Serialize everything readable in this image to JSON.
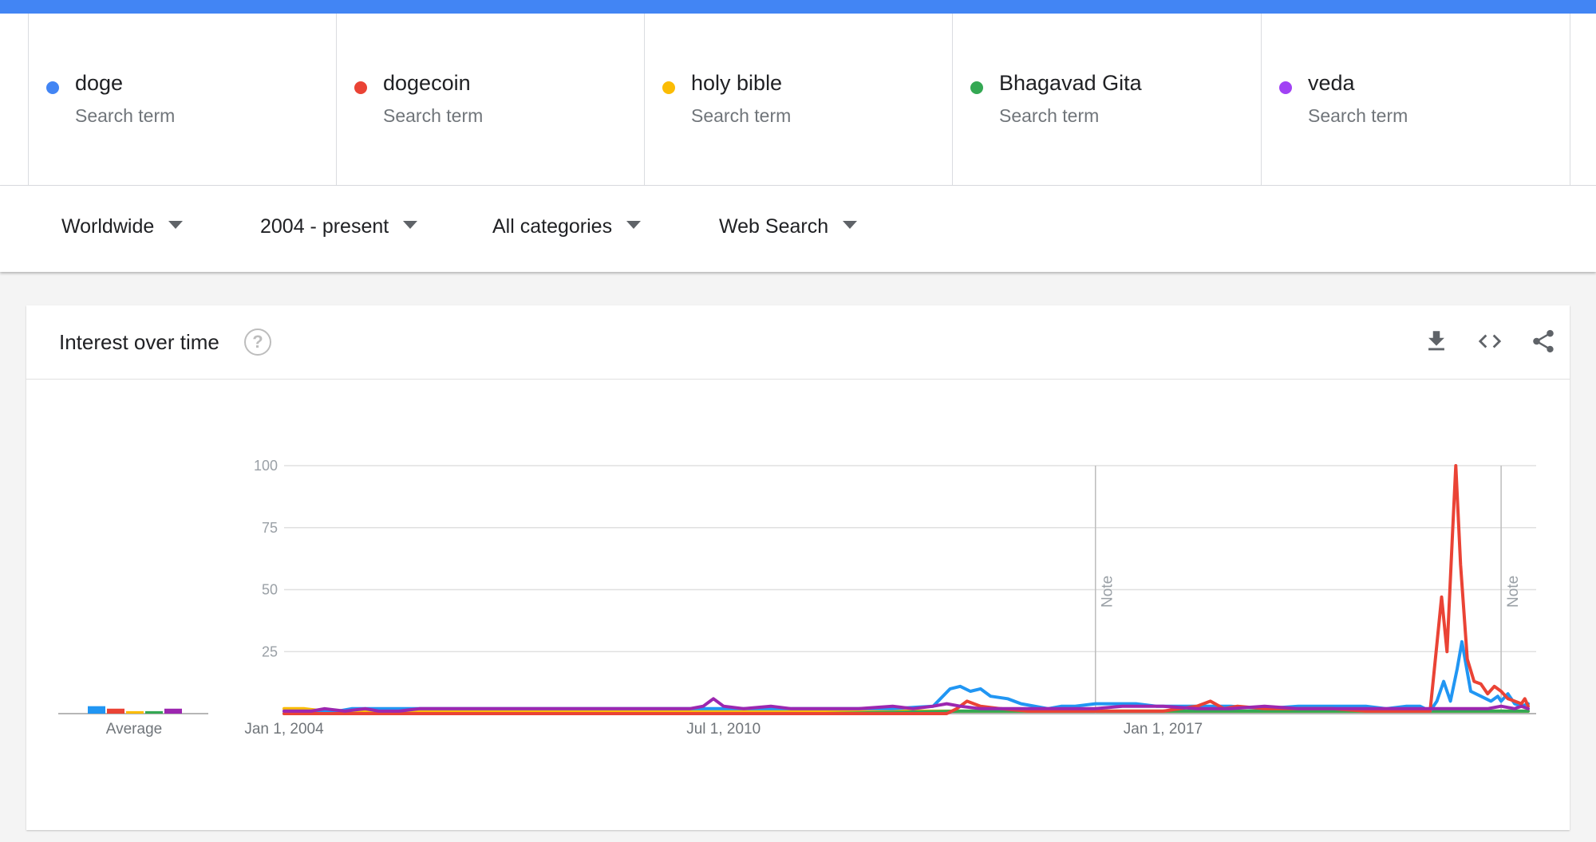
{
  "terms": [
    {
      "name": "doge",
      "sub": "Search term",
      "color": "#4285f4"
    },
    {
      "name": "dogecoin",
      "sub": "Search term",
      "color": "#ea4335"
    },
    {
      "name": "holy bible",
      "sub": "Search term",
      "color": "#fbbc04"
    },
    {
      "name": "Bhagavad Gita",
      "sub": "Search term",
      "color": "#34a853"
    },
    {
      "name": "veda",
      "sub": "Search term",
      "color": "#a142f4"
    }
  ],
  "filters": {
    "region": "Worldwide",
    "time": "2004 - present",
    "category": "All categories",
    "search_type": "Web Search"
  },
  "card": {
    "title": "Interest over time",
    "help_icon": "help-icon",
    "tools": [
      "download-icon",
      "embed-code-icon",
      "share-icon"
    ]
  },
  "chart_data": {
    "type": "line",
    "y_ticks": [
      "100",
      "75",
      "50",
      "25"
    ],
    "ylim": [
      0,
      100
    ],
    "xlim": [
      2004.0,
      2022.4
    ],
    "x_tick_labels": [
      {
        "label": "Jan 1, 2004",
        "x": 2004.0
      },
      {
        "label": "Jul 1, 2010",
        "x": 2010.5
      },
      {
        "label": "Jan 1, 2017",
        "x": 2017.0
      }
    ],
    "notes": [
      {
        "label": "Note",
        "x": 2016.0
      },
      {
        "label": "Note",
        "x": 2022.0
      }
    ],
    "average_label": "Average",
    "averages": [
      {
        "term": "doge",
        "value": 3,
        "color": "#2196f3"
      },
      {
        "term": "dogecoin",
        "value": 2,
        "color": "#ea4335"
      },
      {
        "term": "holy bible",
        "value": 1,
        "color": "#fbbc04"
      },
      {
        "term": "Bhagavad Gita",
        "value": 1,
        "color": "#34a853"
      },
      {
        "term": "veda",
        "value": 2,
        "color": "#9c27b0"
      }
    ],
    "series": [
      {
        "name": "holy bible",
        "color": "#fbbc04",
        "points": [
          [
            2004.0,
            2
          ],
          [
            2004.3,
            2
          ],
          [
            2004.6,
            1
          ],
          [
            2005.5,
            1
          ],
          [
            2010.0,
            1
          ],
          [
            2014.0,
            1
          ],
          [
            2016.0,
            1
          ],
          [
            2020.0,
            1
          ],
          [
            2021.0,
            1
          ],
          [
            2022.0,
            1
          ],
          [
            2022.4,
            1
          ]
        ]
      },
      {
        "name": "Bhagavad Gita",
        "color": "#34a853",
        "points": [
          [
            2004.0,
            0
          ],
          [
            2008.0,
            0
          ],
          [
            2012.0,
            0
          ],
          [
            2014.0,
            1
          ],
          [
            2018.0,
            1
          ],
          [
            2021.0,
            1
          ],
          [
            2022.0,
            1
          ],
          [
            2022.4,
            1
          ]
        ]
      },
      {
        "name": "doge",
        "color": "#2196f3",
        "points": [
          [
            2004.0,
            1
          ],
          [
            2004.8,
            1
          ],
          [
            2005.0,
            2
          ],
          [
            2010.0,
            2
          ],
          [
            2013.0,
            2
          ],
          [
            2013.6,
            3
          ],
          [
            2013.85,
            10
          ],
          [
            2014.0,
            11
          ],
          [
            2014.15,
            9
          ],
          [
            2014.3,
            10
          ],
          [
            2014.45,
            7
          ],
          [
            2014.7,
            6
          ],
          [
            2014.9,
            4
          ],
          [
            2015.1,
            3
          ],
          [
            2015.3,
            2
          ],
          [
            2015.5,
            3
          ],
          [
            2015.7,
            3
          ],
          [
            2016.0,
            4
          ],
          [
            2016.3,
            4
          ],
          [
            2016.6,
            4
          ],
          [
            2016.9,
            3
          ],
          [
            2017.3,
            3
          ],
          [
            2017.6,
            3
          ],
          [
            2018.0,
            3
          ],
          [
            2018.5,
            2
          ],
          [
            2019.0,
            3
          ],
          [
            2019.5,
            3
          ],
          [
            2020.0,
            3
          ],
          [
            2020.3,
            2
          ],
          [
            2020.6,
            3
          ],
          [
            2020.8,
            3
          ],
          [
            2020.95,
            1
          ],
          [
            2021.05,
            5
          ],
          [
            2021.15,
            13
          ],
          [
            2021.25,
            5
          ],
          [
            2021.35,
            18
          ],
          [
            2021.42,
            29
          ],
          [
            2021.55,
            9
          ],
          [
            2021.7,
            7
          ],
          [
            2021.85,
            5
          ],
          [
            2021.95,
            7
          ],
          [
            2022.0,
            5
          ],
          [
            2022.1,
            8
          ],
          [
            2022.2,
            4
          ],
          [
            2022.3,
            3
          ],
          [
            2022.4,
            4
          ]
        ]
      },
      {
        "name": "dogecoin",
        "color": "#ea4335",
        "points": [
          [
            2004.0,
            0
          ],
          [
            2010.0,
            0
          ],
          [
            2013.8,
            0
          ],
          [
            2013.95,
            2
          ],
          [
            2014.1,
            5
          ],
          [
            2014.3,
            3
          ],
          [
            2014.6,
            2
          ],
          [
            2015.0,
            1
          ],
          [
            2016.0,
            1
          ],
          [
            2017.0,
            1
          ],
          [
            2017.5,
            3
          ],
          [
            2017.7,
            5
          ],
          [
            2017.9,
            2
          ],
          [
            2018.1,
            3
          ],
          [
            2018.5,
            2
          ],
          [
            2019.0,
            2
          ],
          [
            2019.5,
            2
          ],
          [
            2020.0,
            1
          ],
          [
            2020.5,
            1
          ],
          [
            2020.95,
            1
          ],
          [
            2021.05,
            28
          ],
          [
            2021.12,
            47
          ],
          [
            2021.2,
            25
          ],
          [
            2021.28,
            72
          ],
          [
            2021.33,
            100
          ],
          [
            2021.4,
            60
          ],
          [
            2021.5,
            22
          ],
          [
            2021.6,
            13
          ],
          [
            2021.7,
            12
          ],
          [
            2021.8,
            8
          ],
          [
            2021.9,
            11
          ],
          [
            2022.0,
            9
          ],
          [
            2022.1,
            6
          ],
          [
            2022.2,
            5
          ],
          [
            2022.3,
            4
          ],
          [
            2022.35,
            6
          ],
          [
            2022.4,
            3
          ]
        ]
      },
      {
        "name": "veda",
        "color": "#9c27b0",
        "points": [
          [
            2004.0,
            1
          ],
          [
            2004.4,
            1
          ],
          [
            2004.6,
            2
          ],
          [
            2004.9,
            1
          ],
          [
            2005.2,
            2
          ],
          [
            2005.4,
            1
          ],
          [
            2005.7,
            1
          ],
          [
            2006.0,
            2
          ],
          [
            2008.0,
            2
          ],
          [
            2010.0,
            2
          ],
          [
            2010.2,
            3
          ],
          [
            2010.35,
            6
          ],
          [
            2010.5,
            3
          ],
          [
            2010.8,
            2
          ],
          [
            2011.2,
            3
          ],
          [
            2011.5,
            2
          ],
          [
            2012.0,
            2
          ],
          [
            2012.5,
            2
          ],
          [
            2013.0,
            3
          ],
          [
            2013.3,
            2
          ],
          [
            2013.6,
            3
          ],
          [
            2013.8,
            4
          ],
          [
            2014.0,
            3
          ],
          [
            2014.3,
            2
          ],
          [
            2015.0,
            2
          ],
          [
            2016.0,
            2
          ],
          [
            2016.4,
            3
          ],
          [
            2017.0,
            3
          ],
          [
            2017.5,
            2
          ],
          [
            2018.0,
            2
          ],
          [
            2018.5,
            3
          ],
          [
            2019.0,
            2
          ],
          [
            2020.0,
            2
          ],
          [
            2020.5,
            2
          ],
          [
            2021.0,
            2
          ],
          [
            2021.4,
            2
          ],
          [
            2021.8,
            2
          ],
          [
            2022.0,
            3
          ],
          [
            2022.2,
            2
          ],
          [
            2022.3,
            3
          ],
          [
            2022.4,
            2
          ]
        ]
      }
    ]
  }
}
